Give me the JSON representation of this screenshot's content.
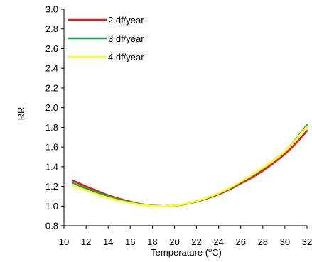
{
  "chart_data": {
    "type": "line",
    "title": "",
    "xlabel": "Temperature (",
    "xlabel_sup": "o",
    "xlabel_tail": "C)",
    "ylabel": "RR",
    "xlim": [
      10,
      32
    ],
    "ylim": [
      0.8,
      3.0
    ],
    "x_ticks": [
      10,
      12,
      14,
      16,
      18,
      20,
      22,
      24,
      26,
      28,
      30,
      32
    ],
    "x_tick_labels": [
      "10",
      "12",
      "14",
      "16",
      "18",
      "20",
      "22",
      "24",
      "26",
      "28",
      "30",
      "32"
    ],
    "y_ticks": [
      0.8,
      1.0,
      1.2,
      1.4,
      1.6,
      1.8,
      2.0,
      2.2,
      2.4,
      2.6,
      2.8,
      3.0
    ],
    "y_tick_labels": [
      "0.8",
      "1.0",
      "1.2",
      "1.4",
      "1.6",
      "1.8",
      "2.0",
      "2.2",
      "2.4",
      "2.6",
      "2.8",
      "3.0"
    ],
    "grid": false,
    "legend_position": "top-left",
    "series": [
      {
        "name": "2 df/year",
        "color": "#e8161b",
        "x": [
          10.8,
          12,
          13,
          14,
          15,
          16,
          17,
          18,
          19,
          20,
          21,
          22,
          23,
          24,
          25,
          26,
          27,
          28,
          29,
          30,
          31,
          32
        ],
        "y": [
          1.26,
          1.2,
          1.155,
          1.11,
          1.075,
          1.045,
          1.02,
          1.005,
          1.0,
          1.005,
          1.02,
          1.045,
          1.08,
          1.12,
          1.17,
          1.23,
          1.29,
          1.36,
          1.44,
          1.53,
          1.64,
          1.765
        ]
      },
      {
        "name": "3 df/year",
        "color": "#1aa34a",
        "x": [
          10.8,
          12,
          13,
          14,
          15,
          16,
          17,
          18,
          19,
          20,
          21,
          22,
          23,
          24,
          25,
          26,
          27,
          28,
          29,
          30,
          31,
          32
        ],
        "y": [
          1.235,
          1.18,
          1.14,
          1.1,
          1.065,
          1.04,
          1.018,
          1.004,
          1.0,
          1.005,
          1.022,
          1.048,
          1.085,
          1.13,
          1.18,
          1.245,
          1.31,
          1.385,
          1.47,
          1.56,
          1.68,
          1.825
        ]
      },
      {
        "name": "4 df/year",
        "color": "#ffff1a",
        "x": [
          10.8,
          12,
          13,
          14,
          15,
          16,
          17,
          18,
          19,
          20,
          21,
          22,
          23,
          24,
          25,
          26,
          27,
          28,
          29,
          30,
          31,
          32
        ],
        "y": [
          1.205,
          1.16,
          1.12,
          1.085,
          1.055,
          1.032,
          1.013,
          1.002,
          1.0,
          1.006,
          1.024,
          1.05,
          1.088,
          1.132,
          1.185,
          1.25,
          1.315,
          1.39,
          1.47,
          1.56,
          1.675,
          1.81
        ]
      }
    ]
  }
}
